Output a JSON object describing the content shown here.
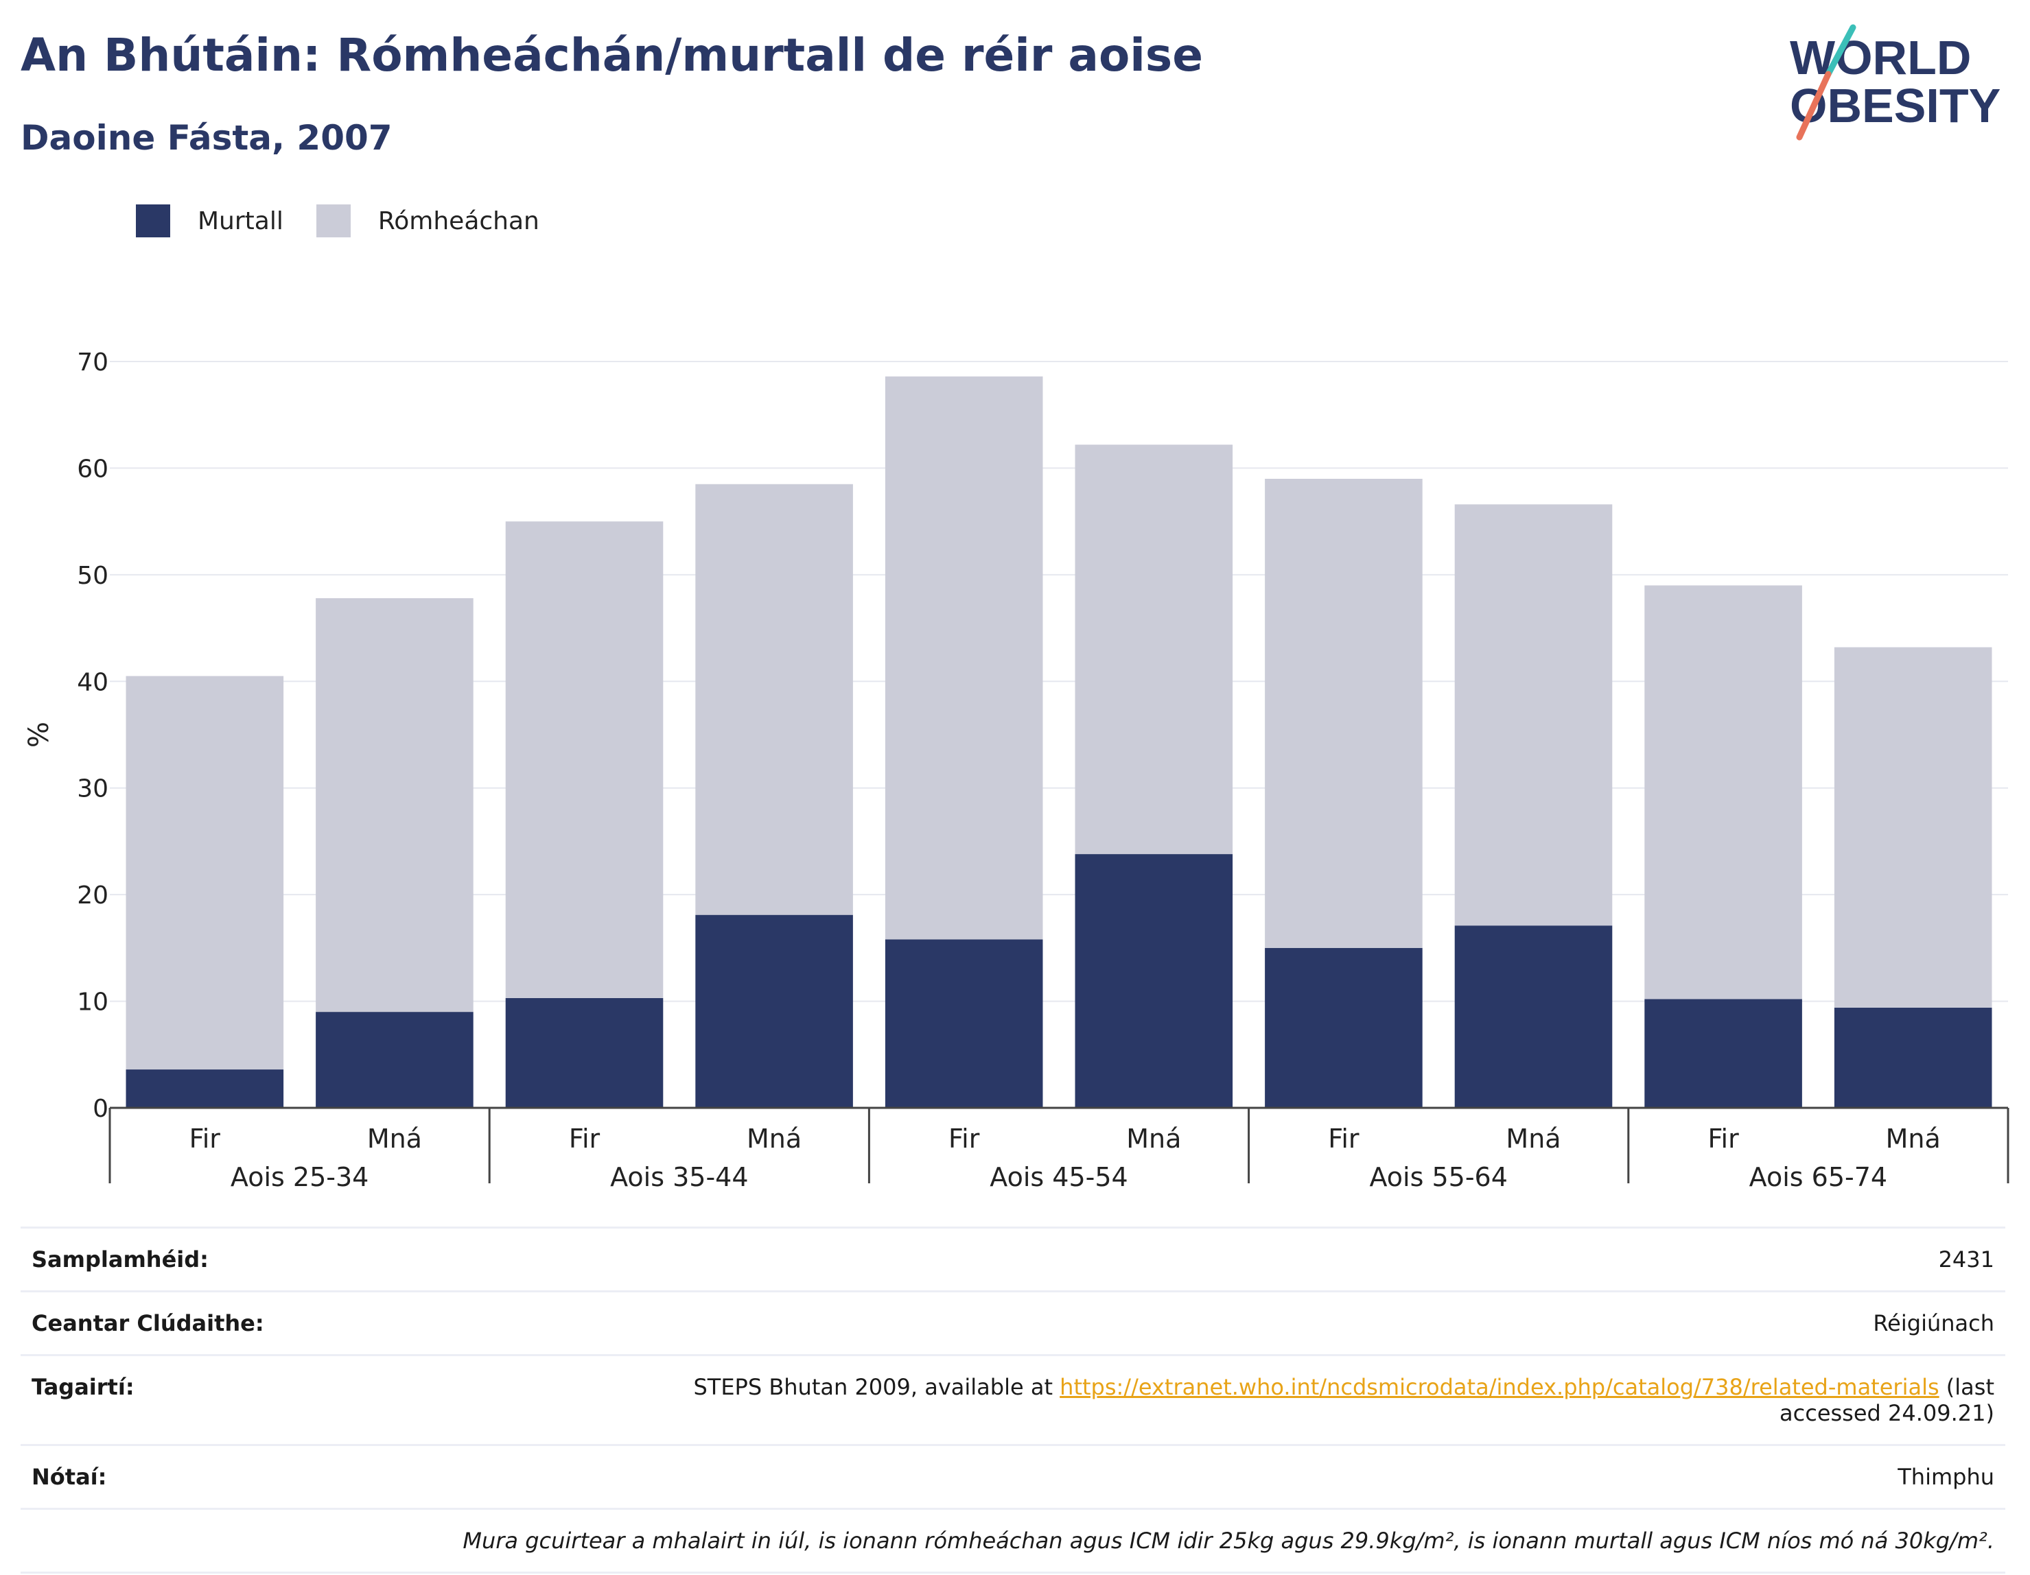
{
  "header": {
    "title": "An Bhútáin: Rómheáchán/murtall de réir aoise",
    "subtitle": "Daoine Fásta, 2007"
  },
  "logo": {
    "line1": "WORLD",
    "line2": "OBESITY"
  },
  "legend": [
    {
      "label": "Murtall",
      "color": "#2a3866"
    },
    {
      "label": "Rómheáchan",
      "color": "#cbccd8"
    }
  ],
  "chart_data": {
    "type": "bar",
    "stacked": true,
    "groups": [
      "Aois 25-34",
      "Aois 35-44",
      "Aois 45-54",
      "Aois 55-64",
      "Aois 65-74"
    ],
    "subcategories": [
      "Fir",
      "Mná"
    ],
    "categories": [
      "Fir",
      "Mná",
      "Fir",
      "Mná",
      "Fir",
      "Mná",
      "Fir",
      "Mná",
      "Fir",
      "Mná"
    ],
    "series": [
      {
        "name": "Murtall",
        "color": "#2a3866",
        "values": [
          3.6,
          9.0,
          10.3,
          18.1,
          15.8,
          23.8,
          15.0,
          17.1,
          10.2,
          9.4
        ]
      },
      {
        "name": "Rómheáchan",
        "color": "#cbccd8",
        "values": [
          36.9,
          38.8,
          44.7,
          40.4,
          52.8,
          38.4,
          44.0,
          39.5,
          38.8,
          33.8
        ]
      }
    ],
    "ylabel": "%",
    "ylim": [
      0,
      70
    ],
    "yticks": [
      0,
      10,
      20,
      30,
      40,
      50,
      60,
      70
    ],
    "grid": true,
    "legend_position": "top-left"
  },
  "info": {
    "sample_size": {
      "label": "Samplamhéid:",
      "value": "2431"
    },
    "area": {
      "label": "Ceantar Clúdaithe:",
      "value": "Réigiúnach"
    },
    "references": {
      "label": "Tagairtí:",
      "text_before": "STEPS Bhutan 2009, available at ",
      "link": "https://extranet.who.int/ncdsmicrodata/index.php/catalog/738/related-materials",
      "text_after": " (last accessed 24.09.21)"
    },
    "notes": {
      "label": "Nótaí:",
      "value": "Thimphu"
    },
    "footnote": "Mura gcuirtear a mhalairt in iúl, is ionann rómheáchan agus ICM idir 25kg agus 29.9kg/m², is ionann murtall agus ICM níos mó ná 30kg/m²."
  }
}
